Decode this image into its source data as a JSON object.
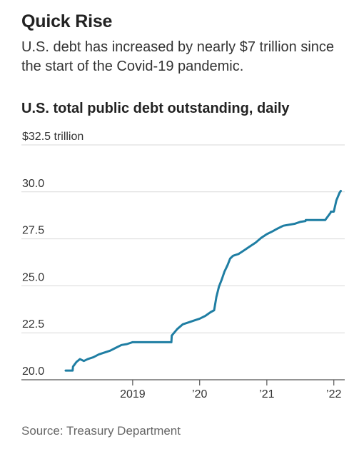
{
  "header": {
    "title": "Quick Rise",
    "subtitle": "U.S. debt has increased by nearly $7 trillion since the start of the Covid-19 pandemic."
  },
  "footer": {
    "source": "Source: Treasury Department"
  },
  "colors": {
    "line": "#1f7ea3",
    "grid": "#d9d9d9",
    "axis": "#555555"
  },
  "chart_data": {
    "type": "line",
    "title": "U.S. total public debt outstanding, daily",
    "ylabel": "",
    "xlabel": "",
    "y_unit_label": "$32.5 trillion",
    "ylim": [
      20.0,
      32.5
    ],
    "xlim": [
      "2018-01-01",
      "2022-02-10"
    ],
    "y_ticks": [
      {
        "value": 20.0,
        "label": "20.0"
      },
      {
        "value": 22.5,
        "label": "22.5"
      },
      {
        "value": 25.0,
        "label": "25.0"
      },
      {
        "value": 27.5,
        "label": "27.5"
      },
      {
        "value": 30.0,
        "label": "30.0"
      },
      {
        "value": 32.5,
        "label": "$32.5 trillion"
      }
    ],
    "x_ticks": [
      {
        "date": "2019-01-01",
        "label": "2019"
      },
      {
        "date": "2020-01-01",
        "label": "’20"
      },
      {
        "date": "2021-01-01",
        "label": "’21"
      },
      {
        "date": "2022-01-01",
        "label": "’22"
      }
    ],
    "grid": "horizontal",
    "series": [
      {
        "x": [
          "2018-01-01",
          "2018-02-08",
          "2018-02-10",
          "2018-03-01",
          "2018-03-20",
          "2018-04-10",
          "2018-05-01",
          "2018-06-01",
          "2018-07-01",
          "2018-08-01",
          "2018-09-01",
          "2018-10-01",
          "2018-11-01",
          "2018-12-01",
          "2019-01-01",
          "2019-02-01",
          "2019-03-01",
          "2019-04-01",
          "2019-05-01",
          "2019-06-01",
          "2019-07-01",
          "2019-07-31",
          "2019-08-02",
          "2019-09-01",
          "2019-10-01",
          "2019-11-01",
          "2019-12-01",
          "2020-01-01",
          "2020-02-01",
          "2020-03-01",
          "2020-03-20",
          "2020-04-01",
          "2020-04-15",
          "2020-05-01",
          "2020-05-15",
          "2020-06-01",
          "2020-06-15",
          "2020-07-01",
          "2020-08-01",
          "2020-09-01",
          "2020-10-01",
          "2020-11-01",
          "2020-12-01",
          "2021-01-01",
          "2021-02-01",
          "2021-03-01",
          "2021-04-01",
          "2021-05-01",
          "2021-06-01",
          "2021-07-01",
          "2021-07-31",
          "2021-08-01",
          "2021-08-31",
          "2021-09-30",
          "2021-10-15",
          "2021-11-15",
          "2021-12-15",
          "2021-12-16",
          "2022-01-01",
          "2022-01-15",
          "2022-02-01",
          "2022-02-08"
        ],
        "y": [
          20.49,
          20.49,
          20.7,
          20.95,
          21.1,
          21.0,
          21.1,
          21.2,
          21.35,
          21.45,
          21.55,
          21.7,
          21.85,
          21.9,
          22.0,
          22.0,
          22.0,
          22.0,
          22.0,
          22.0,
          22.0,
          22.0,
          22.35,
          22.7,
          22.95,
          23.05,
          23.15,
          23.25,
          23.4,
          23.6,
          23.7,
          24.4,
          24.95,
          25.35,
          25.75,
          26.1,
          26.45,
          26.6,
          26.7,
          26.9,
          27.1,
          27.3,
          27.55,
          27.75,
          27.9,
          28.05,
          28.2,
          28.25,
          28.3,
          28.4,
          28.45,
          28.5,
          28.5,
          28.5,
          28.5,
          28.5,
          28.9,
          28.95,
          28.95,
          29.55,
          29.95,
          30.05
        ]
      }
    ]
  }
}
